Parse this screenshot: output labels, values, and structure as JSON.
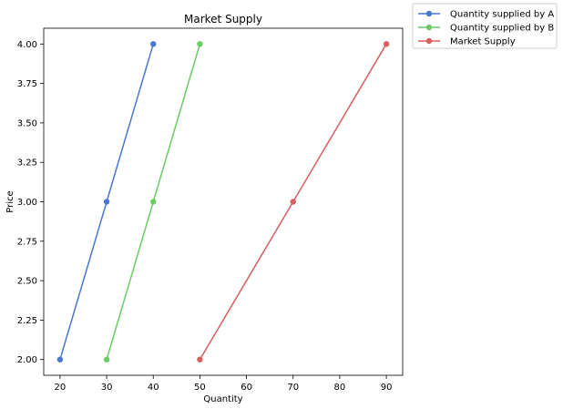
{
  "chart_data": {
    "type": "line",
    "title": "Market Supply",
    "xlabel": "Quantity",
    "ylabel": "Price",
    "xlim": [
      16.5,
      93.5
    ],
    "ylim": [
      1.9,
      4.1
    ],
    "xticks": [
      20,
      30,
      40,
      50,
      60,
      70,
      80,
      90
    ],
    "yticks": [
      2.0,
      2.25,
      2.5,
      2.75,
      3.0,
      3.25,
      3.5,
      3.75,
      4.0
    ],
    "xtick_labels": [
      "20",
      "30",
      "40",
      "50",
      "60",
      "70",
      "80",
      "90"
    ],
    "ytick_labels": [
      "2.00",
      "2.25",
      "2.50",
      "2.75",
      "3.00",
      "3.25",
      "3.50",
      "3.75",
      "4.00"
    ],
    "grid": false,
    "legend_placement": "outside top-right",
    "series": [
      {
        "name": "Quantity supplied by A",
        "color": "#4878cf",
        "x": [
          20,
          30,
          40
        ],
        "y": [
          2,
          3,
          4
        ]
      },
      {
        "name": "Quantity supplied by B",
        "color": "#6acc65",
        "x": [
          30,
          40,
          50
        ],
        "y": [
          2,
          3,
          4
        ]
      },
      {
        "name": "Market Supply",
        "color": "#d65f5f",
        "x": [
          50,
          70,
          90
        ],
        "y": [
          2,
          3,
          4
        ]
      }
    ]
  }
}
